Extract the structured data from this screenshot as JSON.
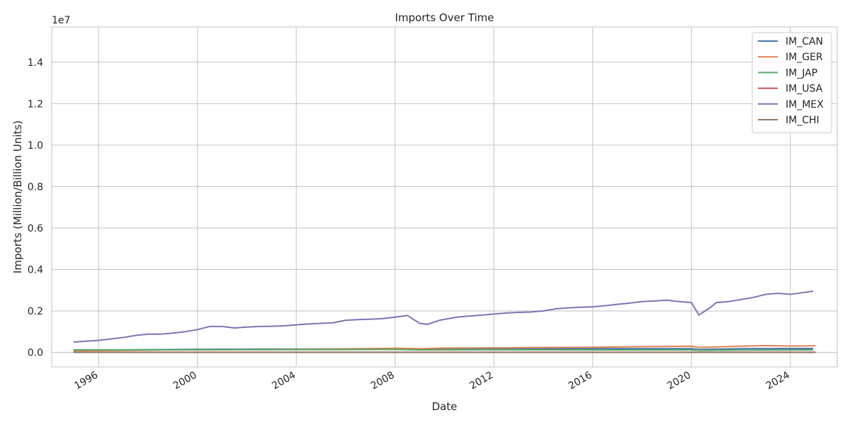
{
  "chart_data": {
    "type": "line",
    "title": "Imports Over Time",
    "xlabel": "Date",
    "ylabel": "Imports (Million/Billion Units)",
    "y_offset_text": "1e7",
    "xlim": [
      1994.1,
      2025.9
    ],
    "ylim": [
      -0.07,
      1.57
    ],
    "x_ticks": [
      1996,
      2000,
      2004,
      2008,
      2012,
      2016,
      2020,
      2024
    ],
    "y_ticks": [
      0.0,
      0.2,
      0.4,
      0.6,
      0.8,
      1.0,
      1.2,
      1.4
    ],
    "y_tick_labels": [
      "0.0",
      "0.2",
      "0.4",
      "0.6",
      "0.8",
      "1.0",
      "1.2",
      "1.4"
    ],
    "grid": true,
    "legend": "top-right",
    "series": [
      {
        "name": "IM_CAN",
        "color": "#4c72b0",
        "x": [
          1995,
          1997,
          2000,
          2003,
          2008,
          2009,
          2012,
          2016,
          2020,
          2020.3,
          2022,
          2024.9
        ],
        "y": [
          0.01,
          0.012,
          0.015,
          0.016,
          0.017,
          0.014,
          0.017,
          0.018,
          0.018,
          0.014,
          0.018,
          0.019
        ]
      },
      {
        "name": "IM_GER",
        "color": "#dd8452",
        "x": [
          1995,
          1997,
          2000,
          2003,
          2005,
          2008,
          2009,
          2010,
          2012,
          2016,
          2020,
          2020.3,
          2022,
          2023,
          2024,
          2025
        ],
        "y": [
          0.008,
          0.01,
          0.013,
          0.014,
          0.016,
          0.02,
          0.018,
          0.021,
          0.022,
          0.025,
          0.03,
          0.024,
          0.03,
          0.033,
          0.031,
          0.032
        ]
      },
      {
        "name": "IM_JAP",
        "color": "#55a868",
        "x": [
          1995,
          2000,
          2008,
          2009,
          2012,
          2016,
          2020,
          2020.3,
          2022,
          2024.9
        ],
        "y": [
          0.012,
          0.013,
          0.014,
          0.012,
          0.013,
          0.012,
          0.012,
          0.01,
          0.011,
          0.012
        ]
      },
      {
        "name": "IM_USA",
        "color": "#c44e52",
        "x": [
          1995,
          2005,
          2015,
          2025
        ],
        "y": [
          0.001,
          0.001,
          0.001,
          0.001
        ]
      },
      {
        "name": "IM_MEX",
        "color": "#8172b3",
        "x": [
          1995,
          1996,
          1996.5,
          1997,
          1997.5,
          1998,
          1998.5,
          1999,
          1999.5,
          2000,
          2000.5,
          2001,
          2001.5,
          2002,
          2002.5,
          2003,
          2003.5,
          2004,
          2004.5,
          2005,
          2005.5,
          2006,
          2006.5,
          2007,
          2007.5,
          2008,
          2008.5,
          2009,
          2009.3,
          2009.8,
          2010.5,
          2011,
          2011.5,
          2012,
          2012.5,
          2013,
          2013.5,
          2014,
          2014.5,
          2015,
          2015.5,
          2016,
          2016.5,
          2017,
          2017.5,
          2018,
          2018.5,
          2019,
          2019.5,
          2020,
          2020.3,
          2020.8,
          2021,
          2021.5,
          2022,
          2022.5,
          2023,
          2023.5,
          2024,
          2024.9
        ],
        "y": [
          0.05,
          0.058,
          0.065,
          0.072,
          0.082,
          0.088,
          0.088,
          0.093,
          0.1,
          0.11,
          0.125,
          0.125,
          0.118,
          0.122,
          0.125,
          0.126,
          0.128,
          0.133,
          0.137,
          0.14,
          0.143,
          0.155,
          0.158,
          0.16,
          0.163,
          0.17,
          0.178,
          0.14,
          0.135,
          0.155,
          0.17,
          0.175,
          0.18,
          0.185,
          0.19,
          0.193,
          0.195,
          0.2,
          0.21,
          0.215,
          0.218,
          0.22,
          0.225,
          0.232,
          0.238,
          0.245,
          0.248,
          0.252,
          0.245,
          0.24,
          0.18,
          0.22,
          0.24,
          0.245,
          0.255,
          0.265,
          0.28,
          0.285,
          0.28,
          0.295
        ]
      },
      {
        "name": "IM_CHI",
        "color": "#937860",
        "x": [
          1995,
          2000,
          2005,
          2010,
          2015,
          2020,
          2025
        ],
        "y": [
          0.0,
          0.0,
          0.0,
          0.0,
          0.0,
          0.0,
          0.0
        ]
      }
    ]
  }
}
